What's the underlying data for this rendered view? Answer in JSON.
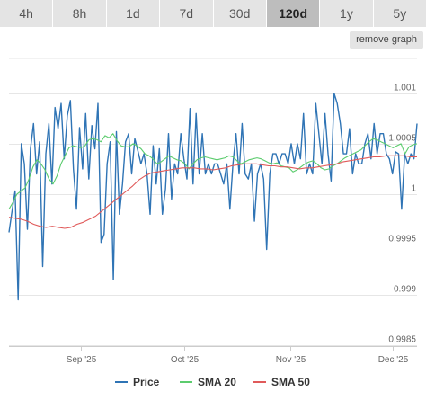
{
  "range_tabs": [
    {
      "label": "4h",
      "active": false
    },
    {
      "label": "8h",
      "active": false
    },
    {
      "label": "1d",
      "active": false
    },
    {
      "label": "7d",
      "active": false
    },
    {
      "label": "30d",
      "active": false
    },
    {
      "label": "120d",
      "active": true
    },
    {
      "label": "1y",
      "active": false
    },
    {
      "label": "5y",
      "active": false
    }
  ],
  "remove_graph_label": "remove graph",
  "chart_data": {
    "type": "line",
    "x_ticks": [
      {
        "label": "Sep '25",
        "day": 21
      },
      {
        "label": "Oct '25",
        "day": 51
      },
      {
        "label": "Nov '25",
        "day": 82
      },
      {
        "label": "Dec '25",
        "day": 112
      }
    ],
    "y_ticks": [
      {
        "label": "1.001",
        "value": 1.001
      },
      {
        "label": "1.0005",
        "value": 1.0005
      },
      {
        "label": "1",
        "value": 1.0
      },
      {
        "label": "0.9995",
        "value": 0.9995
      },
      {
        "label": "0.999",
        "value": 0.999
      },
      {
        "label": "0.9985",
        "value": 0.9985
      }
    ],
    "ylim": [
      0.99849,
      1.00141
    ],
    "xlim": [
      0,
      119
    ],
    "grid": true,
    "legend_position": "bottom",
    "series": [
      {
        "name": "Price",
        "color": "#2f74b5",
        "values": [
          0.99962,
          0.99983,
          1.00003,
          0.99895,
          1.0005,
          1.0003,
          0.99965,
          1.00045,
          1.0007,
          1.0002,
          1.00052,
          0.99928,
          1.0004,
          1.0007,
          1.0001,
          1.00086,
          1.00065,
          1.0009,
          1.00035,
          1.00078,
          1.00093,
          1.00025,
          0.99985,
          1.00066,
          1.00025,
          1.0008,
          1.00015,
          1.00068,
          1.00045,
          1.0009,
          0.99952,
          0.9996,
          1.0003,
          1.00052,
          0.99915,
          1.00062,
          0.9998,
          1.0001,
          1.00052,
          1.0006,
          1.0002,
          1.00055,
          1.00043,
          1.0003,
          1.0004,
          1.0002,
          0.9998,
          1.00048,
          1.0001,
          1.00045,
          0.9998,
          1.00005,
          1.0006,
          0.99995,
          1.0003,
          1.0002,
          1.0006,
          1.00035,
          1.00015,
          1.00085,
          1.0001,
          1.0008,
          1.0002,
          1.0006,
          1.0002,
          1.0003,
          1.0002,
          1.0003,
          1.0003,
          1.0002,
          1.0001,
          1.0003,
          0.99985,
          1.0003,
          1.0006,
          1.0002,
          1.0007,
          1.0002,
          1.00015,
          1.0003,
          0.99973,
          1.0002,
          1.0003,
          1.00015,
          0.99945,
          1.0002,
          1.0004,
          1.0004,
          1.0003,
          1.0004,
          1.0004,
          1.0003,
          1.0005,
          1.0003,
          1.0005,
          1.00035,
          1.0008,
          1.0002,
          1.0003,
          1.0002,
          1.0009,
          1.0006,
          1.0003,
          1.0008,
          1.0004,
          1.00013,
          1.001,
          1.0009,
          1.0007,
          1.0004,
          1.0004,
          1.00065,
          1.0002,
          1.0004,
          1.0003,
          1.0003,
          1.0005,
          1.0006,
          1.00035,
          1.0007,
          1.0004,
          1.0006,
          1.0006,
          1.0004,
          1.00035,
          1.0002,
          1.00042,
          1.0004,
          0.99985,
          1.0004,
          1.0003,
          1.0004,
          1.00035,
          1.0007
        ]
      },
      {
        "name": "SMA 20",
        "color": "#5ccc6e",
        "values": [
          0.99985,
          0.99992,
          1.0,
          1.00003,
          1.00006,
          1.00015,
          1.00027,
          1.00034,
          1.0003,
          1.00024,
          1.00015,
          1.0001,
          1.00018,
          1.0003,
          1.00038,
          1.00046,
          1.00048,
          1.00047,
          1.00046,
          1.00048,
          1.00054,
          1.00055,
          1.00054,
          1.00052,
          1.00058,
          1.00056,
          1.0006,
          1.00053,
          1.00048,
          1.00047,
          1.00047,
          1.0005,
          1.00048,
          1.00045,
          1.0004,
          1.00038,
          1.00035,
          1.0003,
          1.00032,
          1.00035,
          1.00038,
          1.00036,
          1.00034,
          1.00033,
          1.0003,
          1.00025,
          1.0003,
          1.00034,
          1.00036,
          1.00037,
          1.00036,
          1.00035,
          1.00034,
          1.00035,
          1.00036,
          1.00038,
          1.00037,
          1.00033,
          1.0003,
          1.00032,
          1.00034,
          1.00035,
          1.00036,
          1.00035,
          1.00033,
          1.00031,
          1.0003,
          1.00031,
          1.00028,
          1.00027,
          1.00026,
          1.00022,
          1.00024,
          1.00027,
          1.0003,
          1.00032,
          1.00033,
          1.0003,
          1.00026,
          1.00024,
          1.00025,
          1.00028,
          1.0003,
          1.00033,
          1.00036,
          1.00038,
          1.0004,
          1.00042,
          1.00044,
          1.00048,
          1.00052,
          1.00055,
          1.00054,
          1.00052,
          1.0005,
          1.00048,
          1.00046,
          1.00048,
          1.0005,
          1.0004,
          1.00047,
          1.00049,
          1.0005
        ]
      },
      {
        "name": "SMA 50",
        "color": "#e05a5a",
        "values": [
          0.99977,
          0.99976,
          0.99975,
          0.99973,
          0.9997,
          0.99968,
          0.99967,
          0.99968,
          0.99967,
          0.99966,
          0.99967,
          0.9997,
          0.99972,
          0.99975,
          0.99978,
          0.99983,
          0.99988,
          0.99993,
          0.99998,
          1.00003,
          1.00008,
          1.00014,
          1.00018,
          1.00021,
          1.00022,
          1.00023,
          1.00024,
          1.00025,
          1.00026,
          1.00026,
          1.00026,
          1.00025,
          1.00025,
          1.00024,
          1.00025,
          1.00026,
          1.00028,
          1.00029,
          1.0003,
          1.0003,
          1.0003,
          1.00029,
          1.00028,
          1.00028,
          1.00027,
          1.00027,
          1.00026,
          1.00025,
          1.00026,
          1.00026,
          1.00027,
          1.00028,
          1.00029,
          1.0003,
          1.00032,
          1.00033,
          1.00034,
          1.00035,
          1.00036,
          1.00037,
          1.00037,
          1.00038,
          1.00038,
          1.00038,
          1.00038,
          1.00037,
          1.00037
        ]
      }
    ]
  }
}
